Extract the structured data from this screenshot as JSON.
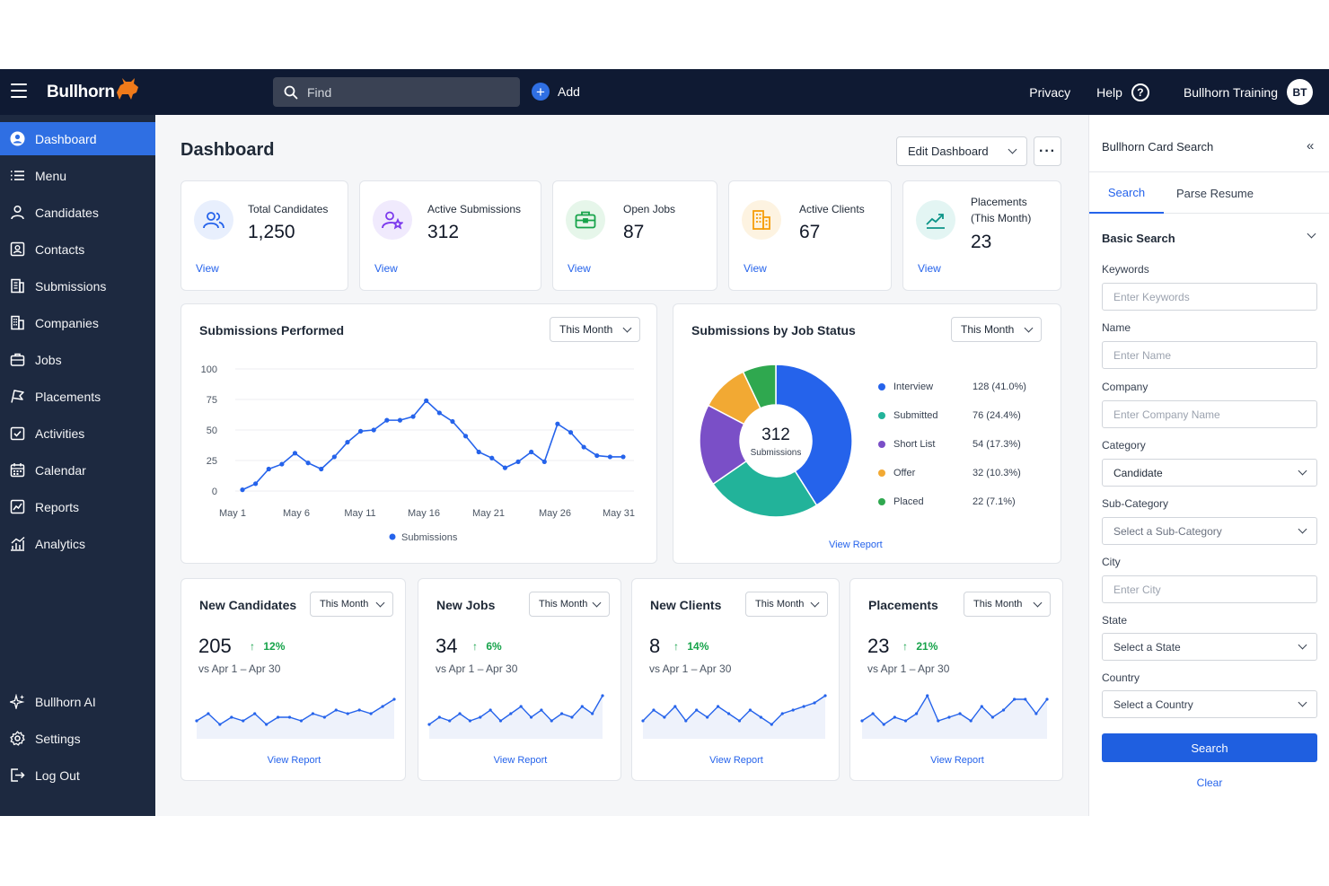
{
  "topbar": {
    "brand": "Bullhorn",
    "search_placeholder": "Find",
    "add_label": "Add",
    "privacy": "Privacy",
    "help": "Help",
    "user_name": "Bullhorn Training",
    "user_initials": "BT"
  },
  "sidebar": {
    "items": [
      {
        "label": "Dashboard",
        "icon": "user-circle-icon"
      },
      {
        "label": "Menu",
        "icon": "list-icon"
      },
      {
        "label": "Candidates",
        "icon": "person-icon"
      },
      {
        "label": "Contacts",
        "icon": "contact-card-icon"
      },
      {
        "label": "Submissions",
        "icon": "document-icon"
      },
      {
        "label": "Companies",
        "icon": "building-icon"
      },
      {
        "label": "Jobs",
        "icon": "briefcase-icon"
      },
      {
        "label": "Placements",
        "icon": "flag-icon"
      },
      {
        "label": "Activities",
        "icon": "checkbox-icon"
      },
      {
        "label": "Calendar",
        "icon": "calendar-icon"
      },
      {
        "label": "Reports",
        "icon": "report-icon"
      },
      {
        "label": "Analytics",
        "icon": "analytics-icon"
      }
    ],
    "bottom": [
      {
        "label": "Bullhorn AI",
        "icon": "sparkle-icon"
      },
      {
        "label": "Settings",
        "icon": "gear-icon"
      },
      {
        "label": "Log Out",
        "icon": "logout-icon"
      }
    ]
  },
  "main": {
    "title": "Dashboard",
    "edit_dashboard": "Edit Dashboard",
    "more": "···",
    "stats": [
      {
        "label": "Total Candidates",
        "value": "1,250",
        "view": "View",
        "color": "#2563eb"
      },
      {
        "label": "Active Submissions",
        "value": "312",
        "view": "View",
        "color": "#7c3aed"
      },
      {
        "label": "Open Jobs",
        "value": "87",
        "view": "View",
        "color": "#16a34a"
      },
      {
        "label": "Active Clients",
        "value": "67",
        "view": "View",
        "color": "#f59e0b"
      },
      {
        "label": "Placements",
        "label2": "(This Month)",
        "value": "23",
        "view": "View",
        "color": "#0d9488"
      }
    ],
    "submissions_performed": {
      "title": "Submissions Performed",
      "period": "This Month",
      "legend": "Submissions"
    },
    "job_status": {
      "title": "Submissions by Job Status",
      "period": "This Month",
      "center_value": "312",
      "center_label": "Submissions",
      "view_report": "View Report"
    },
    "kpis": [
      {
        "title": "New Candidates",
        "period": "This Month",
        "value": "205",
        "change": "12%",
        "range": "vs Apr 1 – Apr 30",
        "view_report": "View Report",
        "spark": [
          3,
          5,
          2,
          4,
          3,
          5,
          2,
          4,
          4,
          3,
          5,
          4,
          6,
          5,
          6,
          5,
          7,
          9
        ]
      },
      {
        "title": "New Jobs",
        "period": "This Month",
        "value": "34",
        "change": "6%",
        "range": "vs Apr 1 – Apr 30",
        "view_report": "View Report",
        "spark": [
          2,
          4,
          3,
          5,
          3,
          4,
          6,
          3,
          5,
          7,
          4,
          6,
          3,
          5,
          4,
          7,
          5,
          10
        ]
      },
      {
        "title": "New Clients",
        "period": "This Month",
        "value": "8",
        "change": "14%",
        "range": "vs Apr 1 – Apr 30",
        "view_report": "View Report",
        "spark": [
          3,
          6,
          4,
          7,
          3,
          6,
          4,
          7,
          5,
          3,
          6,
          4,
          2,
          5,
          6,
          7,
          8,
          10
        ]
      },
      {
        "title": "Placements",
        "period": "This Month",
        "value": "23",
        "change": "21%",
        "range": "vs Apr 1 – Apr 30",
        "view_report": "View Report",
        "spark": [
          3,
          5,
          2,
          4,
          3,
          5,
          10,
          3,
          4,
          5,
          3,
          7,
          4,
          6,
          9,
          9,
          5,
          9
        ]
      }
    ]
  },
  "chart_data": [
    {
      "type": "line",
      "title": "Submissions Performed",
      "x_ticks": [
        "May 1",
        "May 6",
        "May 11",
        "May 16",
        "May 21",
        "May 26",
        "May 31"
      ],
      "y_ticks": [
        "100",
        "75",
        "50",
        "25",
        "0"
      ],
      "ylim": [
        0,
        100
      ],
      "series": [
        {
          "name": "Submissions",
          "color": "#2563eb",
          "x": [
            1,
            2,
            3,
            4,
            5,
            6,
            7,
            8,
            9,
            10,
            11,
            12,
            13,
            14,
            15,
            16,
            17,
            18,
            19,
            20,
            21,
            22,
            23,
            24,
            25,
            26,
            27,
            28,
            29,
            30
          ],
          "values": [
            1,
            6,
            18,
            22,
            31,
            23,
            18,
            28,
            40,
            49,
            50,
            58,
            58,
            61,
            74,
            64,
            57,
            45,
            32,
            27,
            19,
            24,
            32,
            24,
            55,
            48,
            36,
            29,
            28,
            28
          ]
        }
      ],
      "grid": true,
      "legend": "bottom"
    },
    {
      "type": "pie",
      "title": "Submissions by Job Status",
      "slices": [
        {
          "label": "Interview",
          "value": 128,
          "display": "128 (41.0%)",
          "color": "#2563eb"
        },
        {
          "label": "Submitted",
          "value": 76,
          "display": "76 (24.4%)",
          "color": "#22b39a"
        },
        {
          "label": "Short List",
          "value": 54,
          "display": "54 (17.3%)",
          "color": "#7a4fc7"
        },
        {
          "label": "Offer",
          "value": 32,
          "display": "32 (10.3%)",
          "color": "#f2a933"
        },
        {
          "label": "Placed",
          "value": 22,
          "display": "22 (7.1%)",
          "color": "#2fa84f"
        }
      ],
      "legend": "right"
    }
  ],
  "search_panel": {
    "title": "Bullhorn Card Search",
    "tabs": [
      "Search",
      "Parse Resume"
    ],
    "section": "Basic Search",
    "keywords_label": "Keywords",
    "keywords_placeholder": "Enter Keywords",
    "name_label": "Name",
    "name_placeholder": "Enter Name",
    "company_label": "Company",
    "company_placeholder": "Enter Company Name",
    "category_label": "Category",
    "category_value": "Candidate",
    "subcategory_label": "Sub-Category",
    "subcategory_value": "Select a Sub-Category",
    "city_label": "City",
    "city_placeholder": "Enter City",
    "state_label": "State",
    "state_value": "Select a State",
    "country_label": "Country",
    "country_value": "Select a Country",
    "search_button": "Search",
    "clear": "Clear"
  }
}
